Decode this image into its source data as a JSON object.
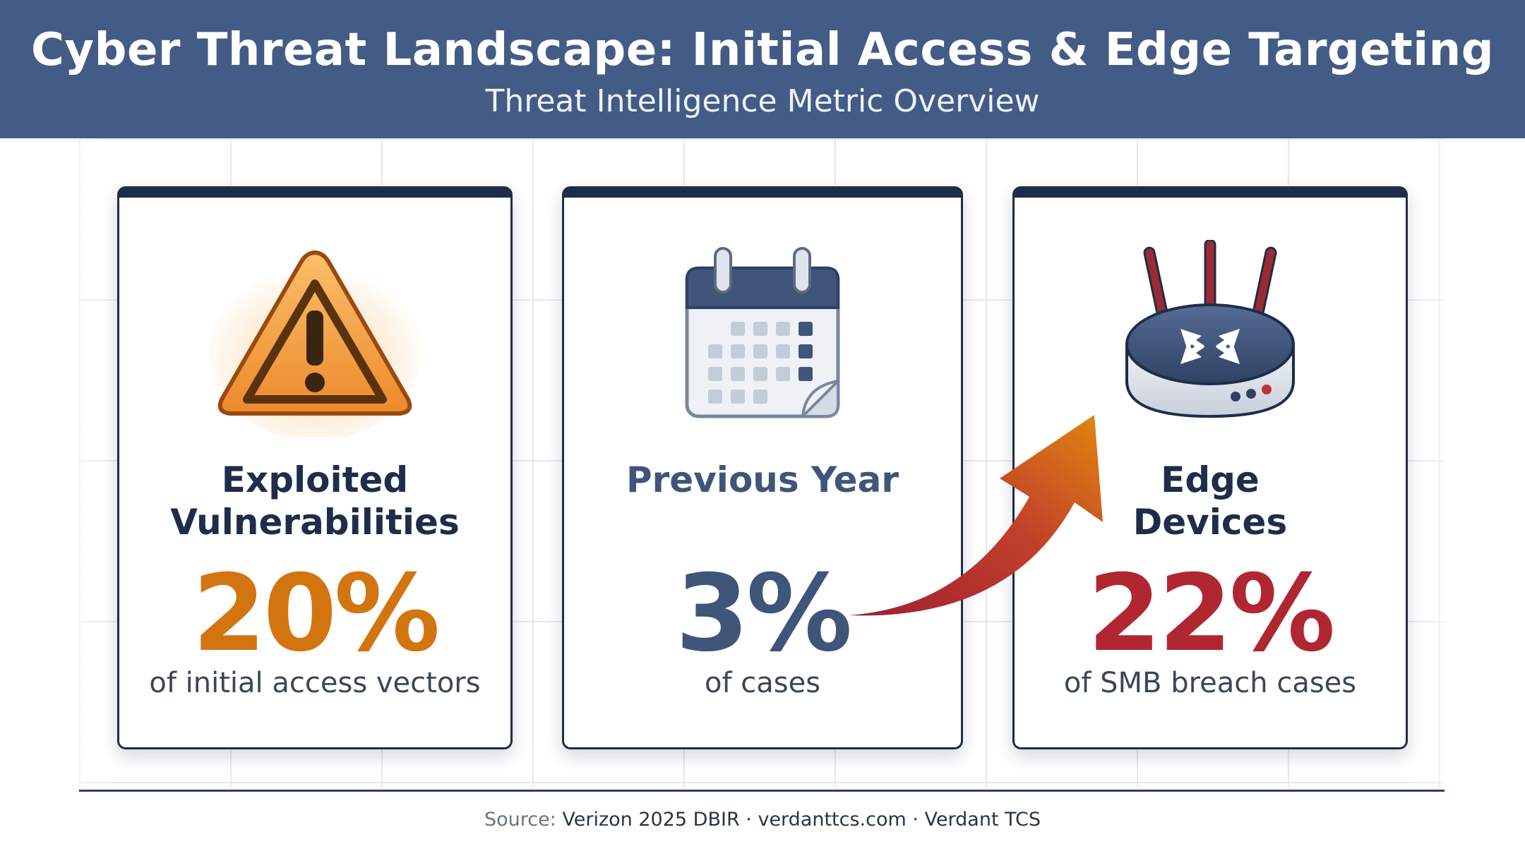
{
  "header": {
    "title": "Cyber Threat Landscape: Initial Access & Edge Targeting",
    "subtitle": "Threat Intelligence Metric Overview"
  },
  "cards": [
    {
      "icon": "warning-triangle-icon",
      "title_line1": "Exploited",
      "title_line2": "Vulnerabilities",
      "value": "20%",
      "description": "of initial access vectors",
      "accent": "#d27510"
    },
    {
      "icon": "calendar-icon",
      "title_line1": "Previous Year",
      "value": "3%",
      "description": "of cases",
      "accent": "#3f5579"
    },
    {
      "icon": "router-icon",
      "title_line1": "Edge",
      "title_line2": "Devices",
      "value": "22%",
      "description": "of SMB breach cases",
      "accent": "#b02731"
    }
  ],
  "footer": {
    "source_label": "Source:",
    "source_text": "Verizon 2025 DBIR · verdanttcs.com · Verdant TCS"
  },
  "colors": {
    "header_bg": "#435c86",
    "card_border": "#1e2d49",
    "arrow_start": "#b02731",
    "arrow_end": "#e0870f"
  }
}
